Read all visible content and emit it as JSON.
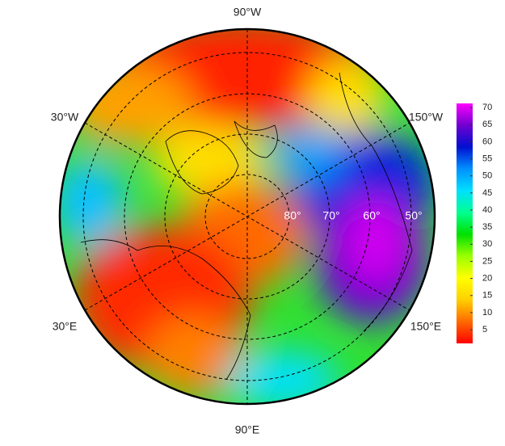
{
  "map": {
    "lon_labels": [
      "90°W",
      "30°W",
      "150°W",
      "30°E",
      "150°E",
      "90°E"
    ],
    "lat_labels": [
      "80°",
      "70°",
      "60°",
      "50°"
    ],
    "colorbar": {
      "ticks": [
        5,
        10,
        15,
        20,
        25,
        30,
        35,
        40,
        45,
        50,
        55,
        60,
        65,
        70
      ],
      "lim": [
        1,
        71.2
      ],
      "colors": [
        "#ff0000",
        "#ff6a00",
        "#ffd000",
        "#ffff00",
        "#9aff00",
        "#00e000",
        "#00ff90",
        "#00e0ff",
        "#0090ff",
        "#0010d0",
        "#7000d0",
        "#ff00ff"
      ]
    }
  }
}
